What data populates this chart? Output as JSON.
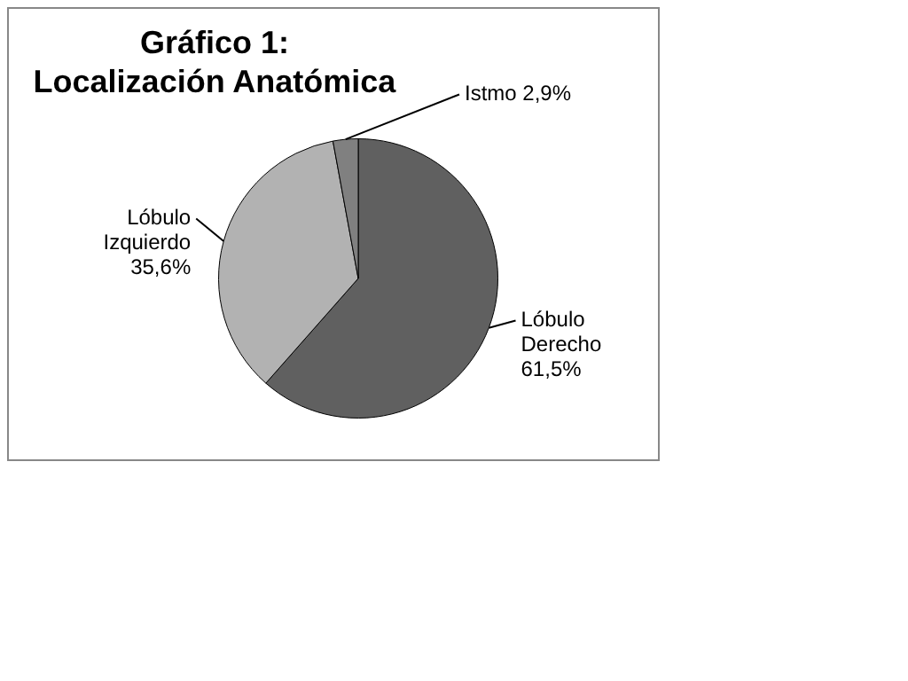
{
  "chart_data": {
    "type": "pie",
    "title": "Gráfico 1:\nLocalización Anatómica",
    "categories": [
      "Lóbulo Derecho",
      "Lóbulo Izquierdo",
      "Istmo"
    ],
    "values": [
      61.5,
      35.6,
      2.9
    ],
    "value_labels": [
      "61,5%",
      "35,6%",
      "2,9%"
    ],
    "colors": [
      "#606060",
      "#b2b2b2",
      "#808080"
    ],
    "legend": false
  }
}
